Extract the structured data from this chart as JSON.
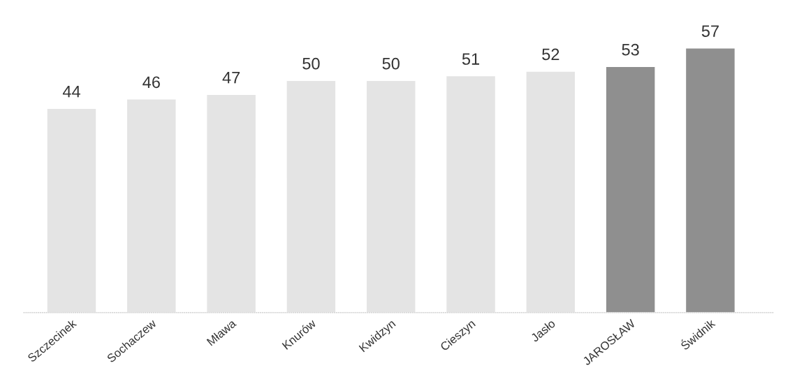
{
  "chart_data": {
    "type": "bar",
    "categories": [
      "Szczecinek",
      "Sochaczew",
      "Mława",
      "Knurów",
      "Kwidzyn",
      "Cieszyn",
      "Jasło",
      "JAROSŁAW",
      "Świdnik"
    ],
    "values": [
      44,
      46,
      47,
      50,
      50,
      51,
      52,
      53,
      57
    ],
    "colors": [
      "#e4e4e4",
      "#e4e4e4",
      "#e4e4e4",
      "#e4e4e4",
      "#e4e4e4",
      "#e4e4e4",
      "#e4e4e4",
      "#8f8f8f",
      "#8f8f8f"
    ],
    "tick_labels": "x",
    "data_labels": true,
    "grid": false,
    "legend": false
  }
}
